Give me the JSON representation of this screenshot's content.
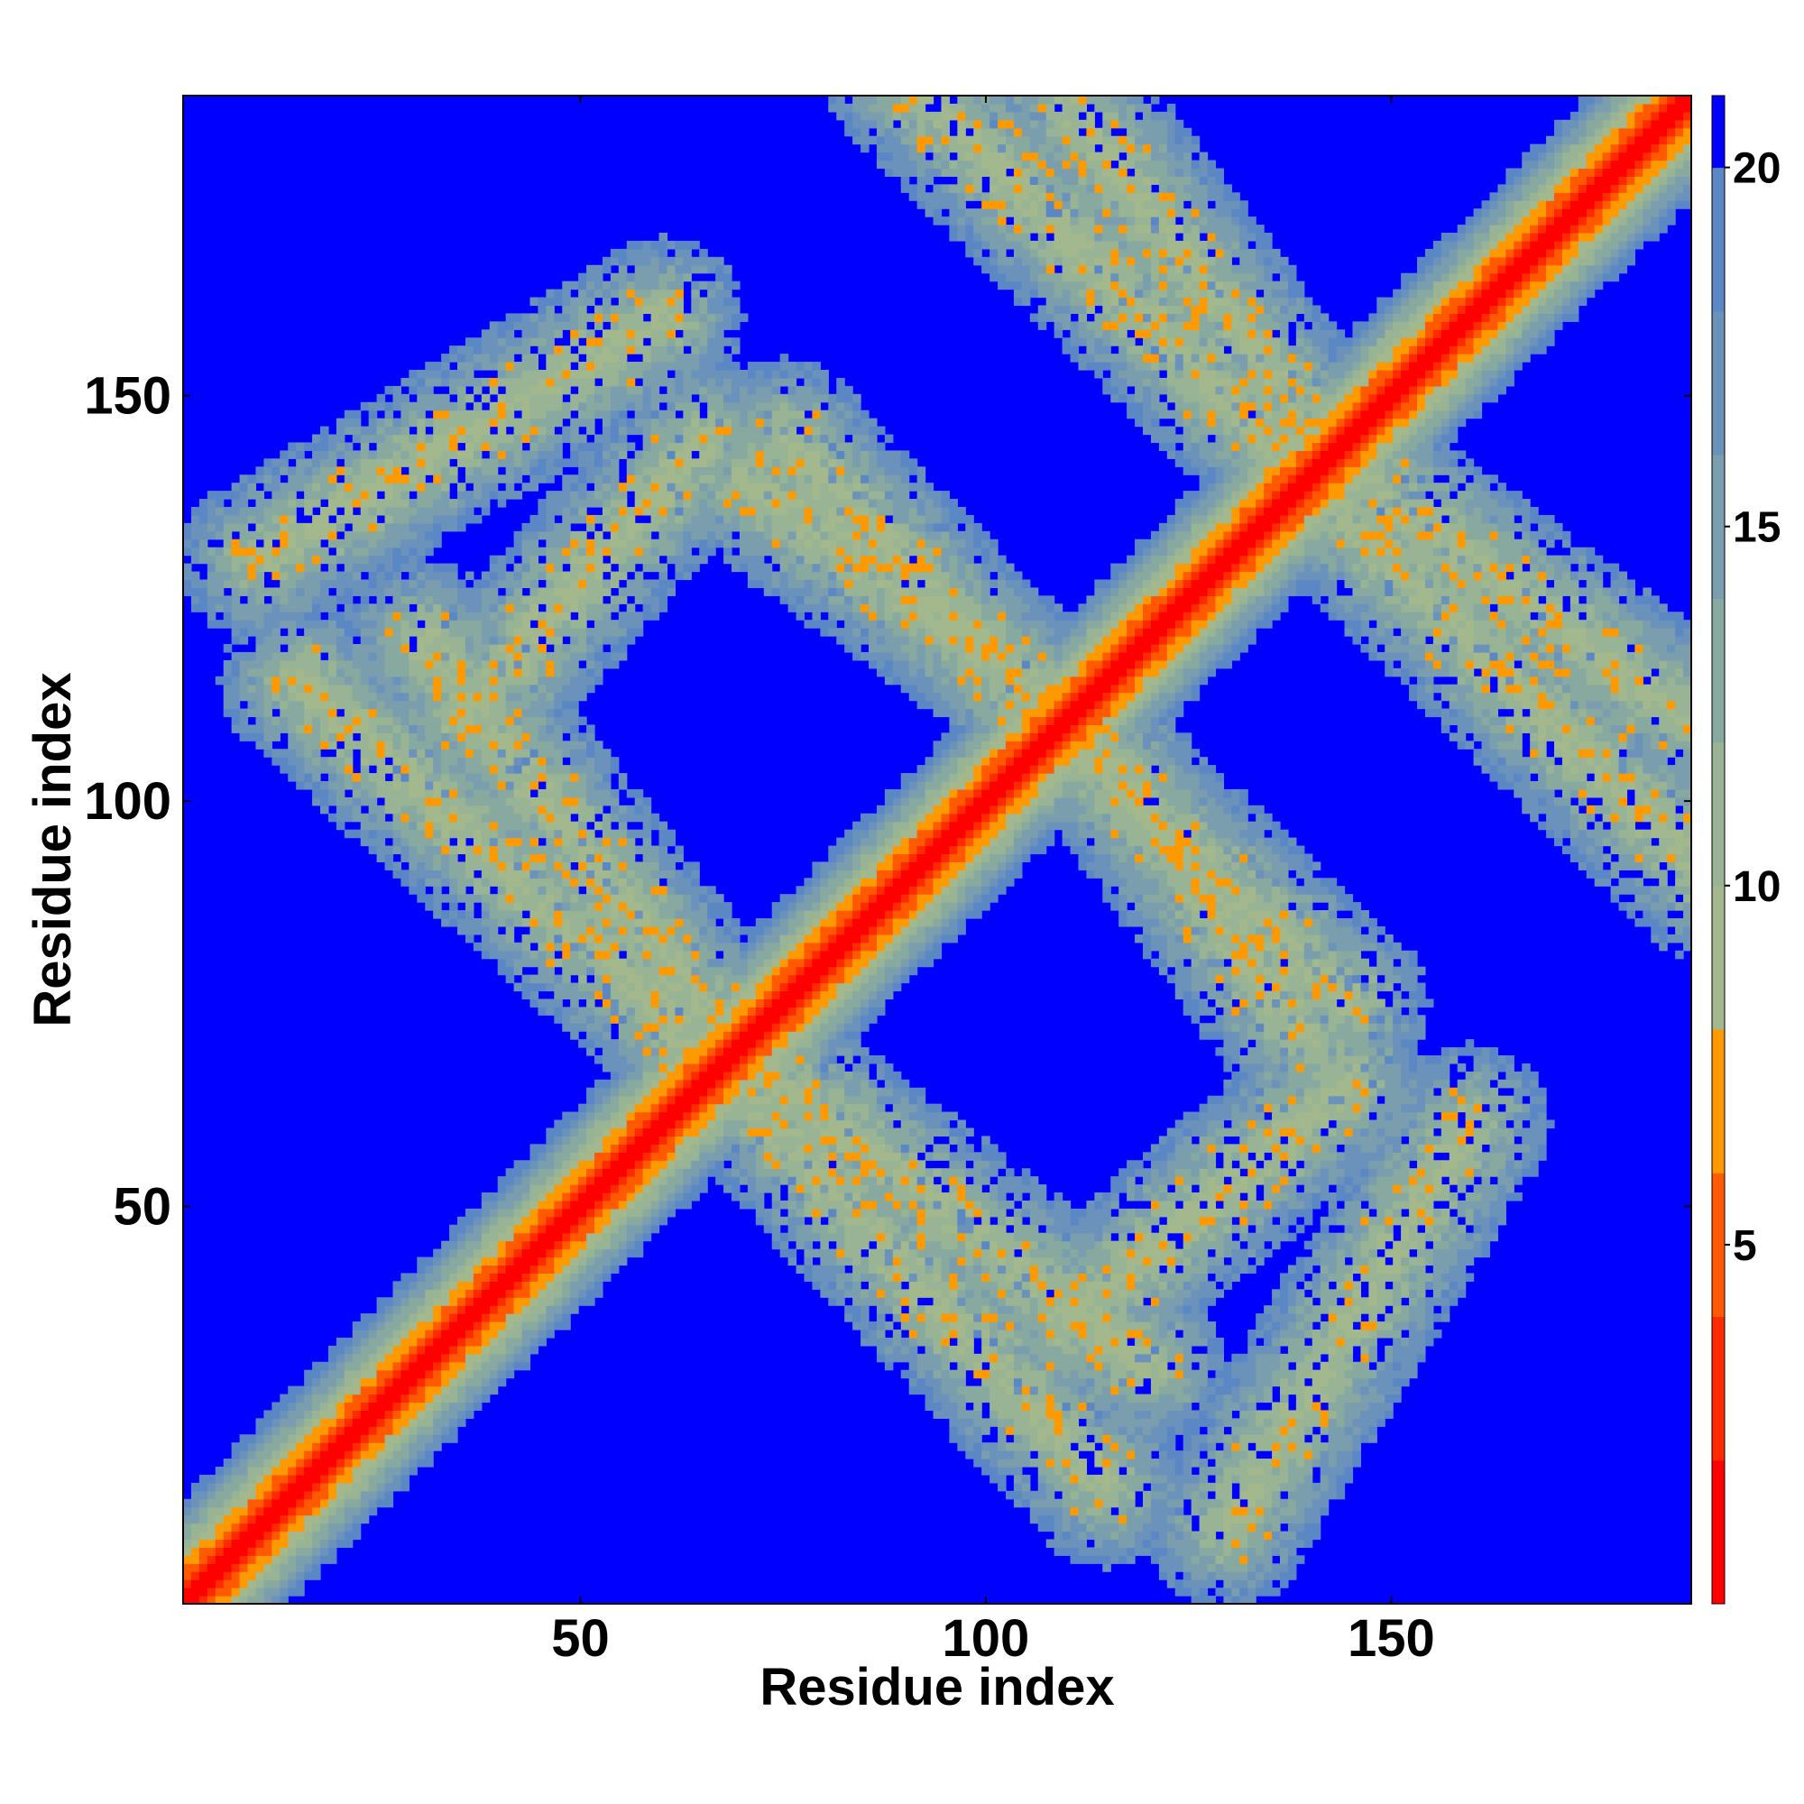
{
  "chart_data": {
    "type": "heatmap",
    "title": "",
    "xlabel": "Residue index",
    "ylabel": "Residue index",
    "n": 187,
    "xlim": [
      1,
      187
    ],
    "ylim": [
      1,
      187
    ],
    "x_ticks": [
      50,
      100,
      150
    ],
    "y_ticks": [
      50,
      100,
      150
    ],
    "grid": false,
    "matrix_description": "symmetric residue contact distance map",
    "value_range": [
      0,
      21
    ],
    "colorbar": {
      "ticks": [
        5,
        10,
        15,
        20
      ],
      "range": [
        0,
        21
      ],
      "placement": "right",
      "colors": [
        {
          "from": 0,
          "to": 2,
          "color": "#ff0000"
        },
        {
          "from": 2,
          "to": 4,
          "color": "#ff2a00"
        },
        {
          "from": 4,
          "to": 6,
          "color": "#ff5a00"
        },
        {
          "from": 6,
          "to": 8,
          "color": "#ff9900"
        },
        {
          "from": 8,
          "to": 10,
          "color": "#a3b88c"
        },
        {
          "from": 10,
          "to": 12,
          "color": "#98b494"
        },
        {
          "from": 12,
          "to": 14,
          "color": "#88a9a0"
        },
        {
          "from": 14,
          "to": 16,
          "color": "#7a9ead"
        },
        {
          "from": 16,
          "to": 18,
          "color": "#6a92ba"
        },
        {
          "from": 18,
          "to": 20,
          "color": "#5b87c5"
        },
        {
          "from": 20,
          "to": 21,
          "color": "#0000ff"
        }
      ]
    },
    "diagonal_band": {
      "description": "near-diagonal contacts",
      "center_value": 0,
      "edge_value": 20,
      "half_width": 13
    },
    "contact_bands": [
      {
        "start": [
          10,
          130
        ],
        "end": [
          60,
          160
        ],
        "description": "antidiagonal strand pairing"
      },
      {
        "start": [
          15,
          115
        ],
        "end": [
          75,
          60
        ],
        "description": "band crossing diagonal at ~70"
      },
      {
        "start": [
          68,
          70
        ],
        "end": [
          120,
          30
        ],
        "description": "lower strand pairing"
      },
      {
        "start": [
          70,
          140
        ],
        "end": [
          105,
          115
        ],
        "description": "upper-left region"
      },
      {
        "start": [
          90,
          190
        ],
        "end": [
          140,
          140
        ],
        "description": "top pairing band"
      },
      {
        "start": [
          110,
          108
        ],
        "end": [
          145,
          75
        ],
        "description": "band below diagonal near 110"
      },
      {
        "start": [
          140,
          145
        ],
        "end": [
          187,
          110
        ],
        "description": "right-side band"
      },
      {
        "start": [
          110,
          35
        ],
        "end": [
          145,
          65
        ],
        "description": "lower-right cluster"
      }
    ],
    "colors": {
      "background": "#0000ff",
      "contact_core": "#ff0000",
      "contact_mid": "#ff9900",
      "contact_edge": "#7a9ead"
    }
  }
}
